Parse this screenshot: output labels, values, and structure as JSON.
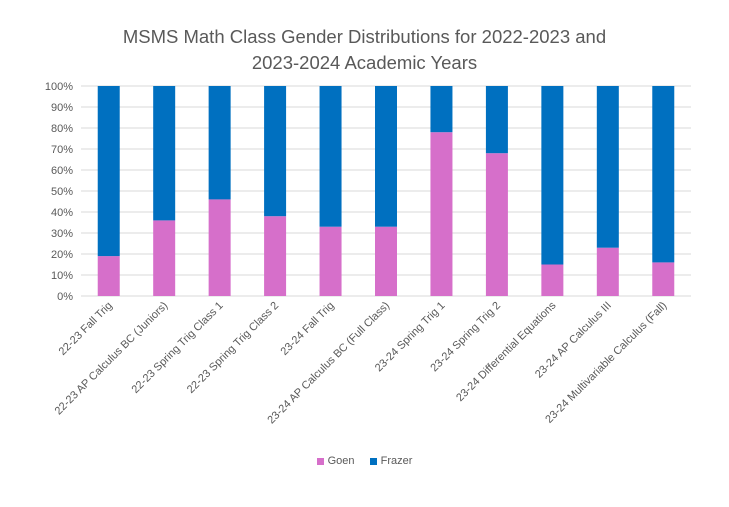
{
  "chart_data": {
    "type": "bar",
    "stacked": "percent",
    "title": "MSMS Math Class Gender Distributions for 2022-2023 and 2023-2024 Academic Years",
    "title_lines": [
      "MSMS Math Class Gender Distributions for 2022-2023 and",
      "2023-2024 Academic Years"
    ],
    "xlabel": "",
    "ylabel": "",
    "ylim": [
      0,
      100
    ],
    "yticks": [
      "0%",
      "10%",
      "20%",
      "30%",
      "40%",
      "50%",
      "60%",
      "70%",
      "80%",
      "90%",
      "100%"
    ],
    "grid": true,
    "legend_position": "bottom",
    "categories": [
      "22-23 Fall Trig",
      "22-23 AP Calculus BC (Juniors)",
      "22-23 Spring Trig Class 1",
      "22-23 Spring Trig Class 2",
      "23-24 Fall Trig",
      "23-24 AP Calculus BC (Full Class)",
      "23-24 Spring Trig 1",
      "23-24 Spring Trig 2",
      "23-24 Differential Equations",
      "23-24 AP Calculus III",
      "23-24 Multivariable Calculus (Fall)"
    ],
    "series": [
      {
        "name": "Goen",
        "color": "#D66FCA",
        "values": [
          19,
          36,
          46,
          38,
          33,
          33,
          78,
          68,
          15,
          23,
          16
        ]
      },
      {
        "name": "Frazer",
        "color": "#0070C0",
        "values": [
          81,
          64,
          54,
          62,
          67,
          67,
          22,
          32,
          85,
          77,
          84
        ]
      }
    ]
  }
}
